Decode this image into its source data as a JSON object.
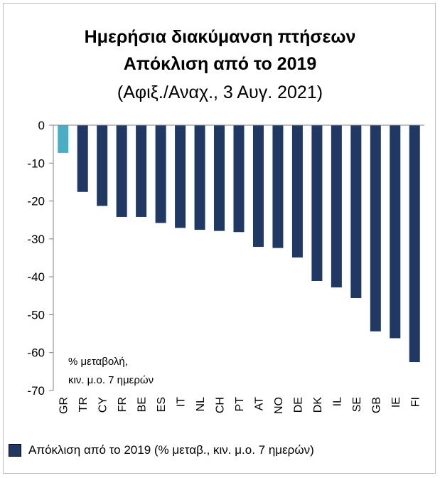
{
  "chart_data": {
    "type": "bar",
    "title": "Ημερήσια διακύμανση πτήσεων",
    "subtitle": "Απόκλιση από το 2019",
    "subtitle2": "(Αφιξ./Αναχ., 3 Αυγ. 2021)",
    "note_line1": "% μεταβολή,",
    "note_line2": "κιν. μ.ο. 7 ημερών",
    "categories": [
      "GR",
      "TR",
      "CY",
      "FR",
      "BE",
      "ES",
      "IT",
      "NL",
      "CH",
      "PT",
      "AT",
      "NO",
      "DE",
      "DK",
      "IL",
      "SE",
      "GB",
      "IE",
      "FI"
    ],
    "series": [
      {
        "name": "Απόκλιση από το 2019 (% μεταβ., κιν. μ.ο. 7 ημερών)",
        "values": [
          -7.3,
          -17.6,
          -21.3,
          -24.2,
          -24.2,
          -25.8,
          -27.1,
          -27.6,
          -27.9,
          -28.2,
          -32.1,
          -32.4,
          -34.9,
          -41.1,
          -42.8,
          -45.6,
          -54.4,
          -56.2,
          -62.5
        ]
      }
    ],
    "highlight_category": "GR",
    "ylim": [
      -70,
      0
    ],
    "yticks": [
      0,
      -10,
      -20,
      -30,
      -40,
      -50,
      -60,
      -70
    ],
    "colors": {
      "bar": "#203864",
      "highlight": "#4bacc6",
      "axis": "#808080"
    }
  }
}
